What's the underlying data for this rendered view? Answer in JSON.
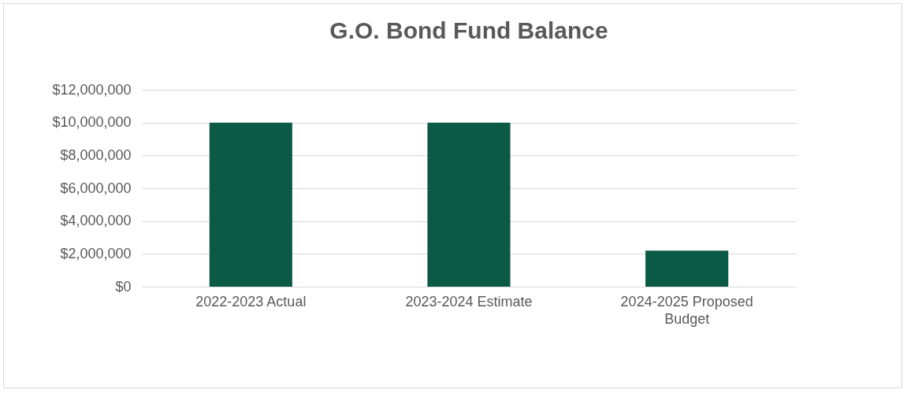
{
  "chart_data": {
    "type": "bar",
    "title": "G.O. Bond Fund Balance",
    "categories": [
      "2022-2023 Actual",
      "2023-2024 Estimate",
      "2024-2025 Proposed Budget"
    ],
    "values": [
      10000000,
      10000000,
      2200000
    ],
    "color": "#0b5a45",
    "ylim": [
      0,
      12000000
    ],
    "yticks": [
      {
        "value": 0,
        "label": "$0"
      },
      {
        "value": 2000000,
        "label": "$2,000,000"
      },
      {
        "value": 4000000,
        "label": "$4,000,000"
      },
      {
        "value": 6000000,
        "label": "$6,000,000"
      },
      {
        "value": 8000000,
        "label": "$8,000,000"
      },
      {
        "value": 10000000,
        "label": "$10,000,000"
      },
      {
        "value": 12000000,
        "label": "$12,000,000"
      }
    ],
    "grid": "y"
  }
}
